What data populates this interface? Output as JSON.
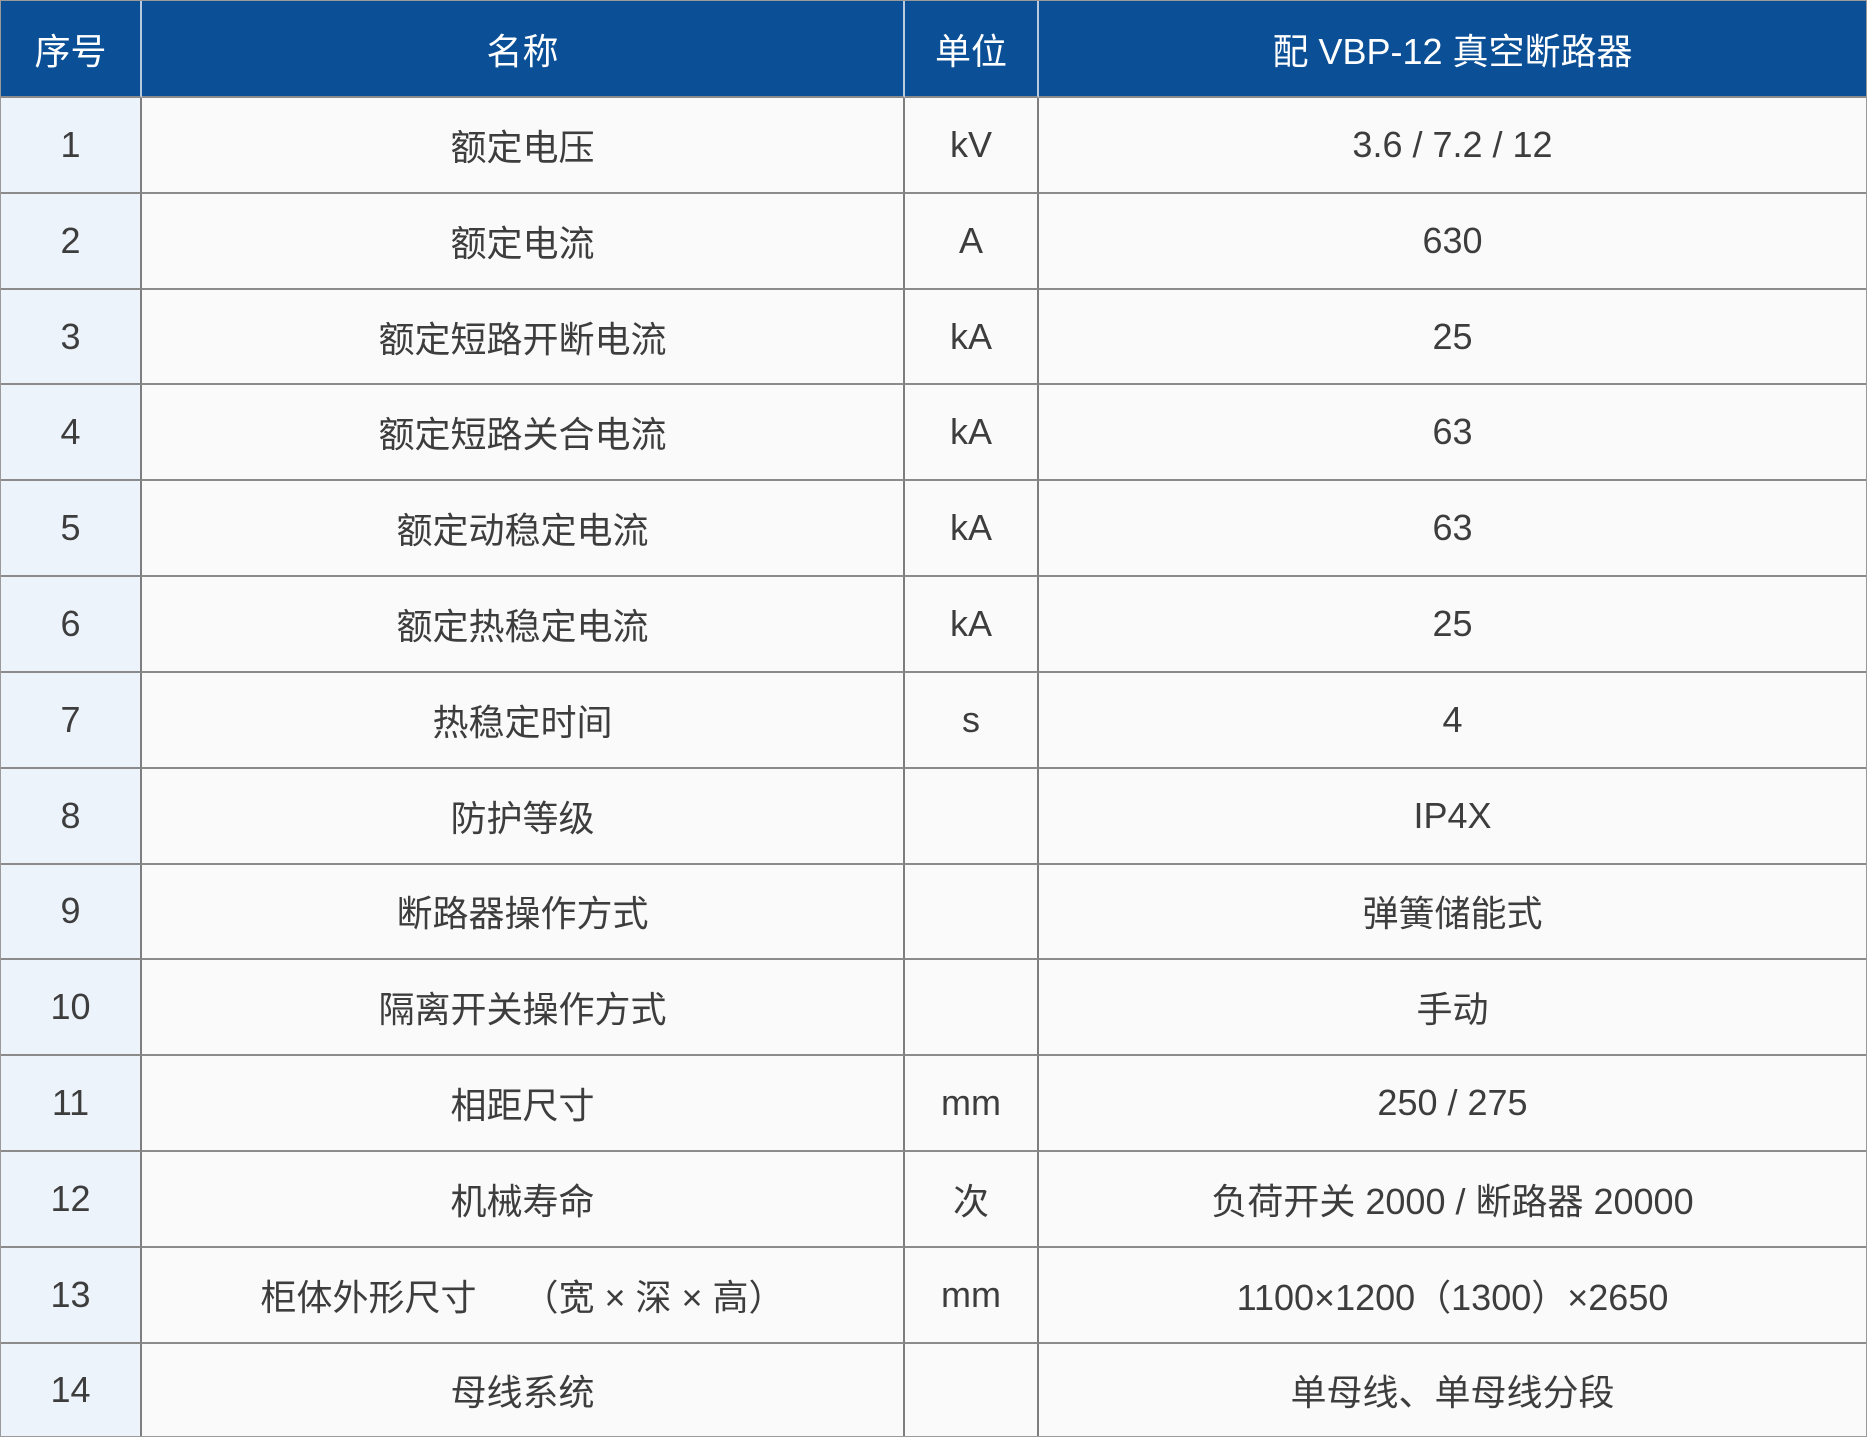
{
  "table": {
    "columns": [
      {
        "key": "no",
        "label": "序号"
      },
      {
        "key": "name",
        "label": "名称"
      },
      {
        "key": "unit",
        "label": "单位"
      },
      {
        "key": "value",
        "label": "配 VBP-12 真空断路器"
      }
    ],
    "rows": [
      {
        "no": "1",
        "name": "额定电压",
        "unit": "kV",
        "value": "3.6 / 7.2 / 12"
      },
      {
        "no": "2",
        "name": "额定电流",
        "unit": "A",
        "value": "630"
      },
      {
        "no": "3",
        "name": "额定短路开断电流",
        "unit": "kA",
        "value": "25"
      },
      {
        "no": "4",
        "name": "额定短路关合电流",
        "unit": "kA",
        "value": "63"
      },
      {
        "no": "5",
        "name": "额定动稳定电流",
        "unit": "kA",
        "value": "63"
      },
      {
        "no": "6",
        "name": "额定热稳定电流",
        "unit": "kA",
        "value": "25"
      },
      {
        "no": "7",
        "name": "热稳定时间",
        "unit": "s",
        "value": "4"
      },
      {
        "no": "8",
        "name": "防护等级",
        "unit": "",
        "value": "IP4X"
      },
      {
        "no": "9",
        "name": "断路器操作方式",
        "unit": "",
        "value": "弹簧储能式"
      },
      {
        "no": "10",
        "name": "隔离开关操作方式",
        "unit": "",
        "value": "手动"
      },
      {
        "no": "11",
        "name": "相距尺寸",
        "unit": "mm",
        "value": "250 / 275"
      },
      {
        "no": "12",
        "name": "机械寿命",
        "unit": "次",
        "value": "负荷开关 2000 / 断路器 20000"
      },
      {
        "no": "13",
        "name": "柜体外形尺寸　 （宽 × 深 × 高）",
        "unit": "mm",
        "value": "1100×1200（1300）×2650"
      },
      {
        "no": "14",
        "name": "母线系统",
        "unit": "",
        "value": "单母线、单母线分段"
      }
    ]
  },
  "theme": {
    "header_bg": "#0b4f96",
    "header_text": "#ffffff",
    "index_col_bg": "#edf3fb",
    "cell_bg": "#fafafa",
    "row_border": "#8b8b8b",
    "col_border": "#7e7e7e",
    "header_divider": "#b9c9de",
    "text_color": "#3d3d3d",
    "outer_border": "#9a9a9a"
  }
}
